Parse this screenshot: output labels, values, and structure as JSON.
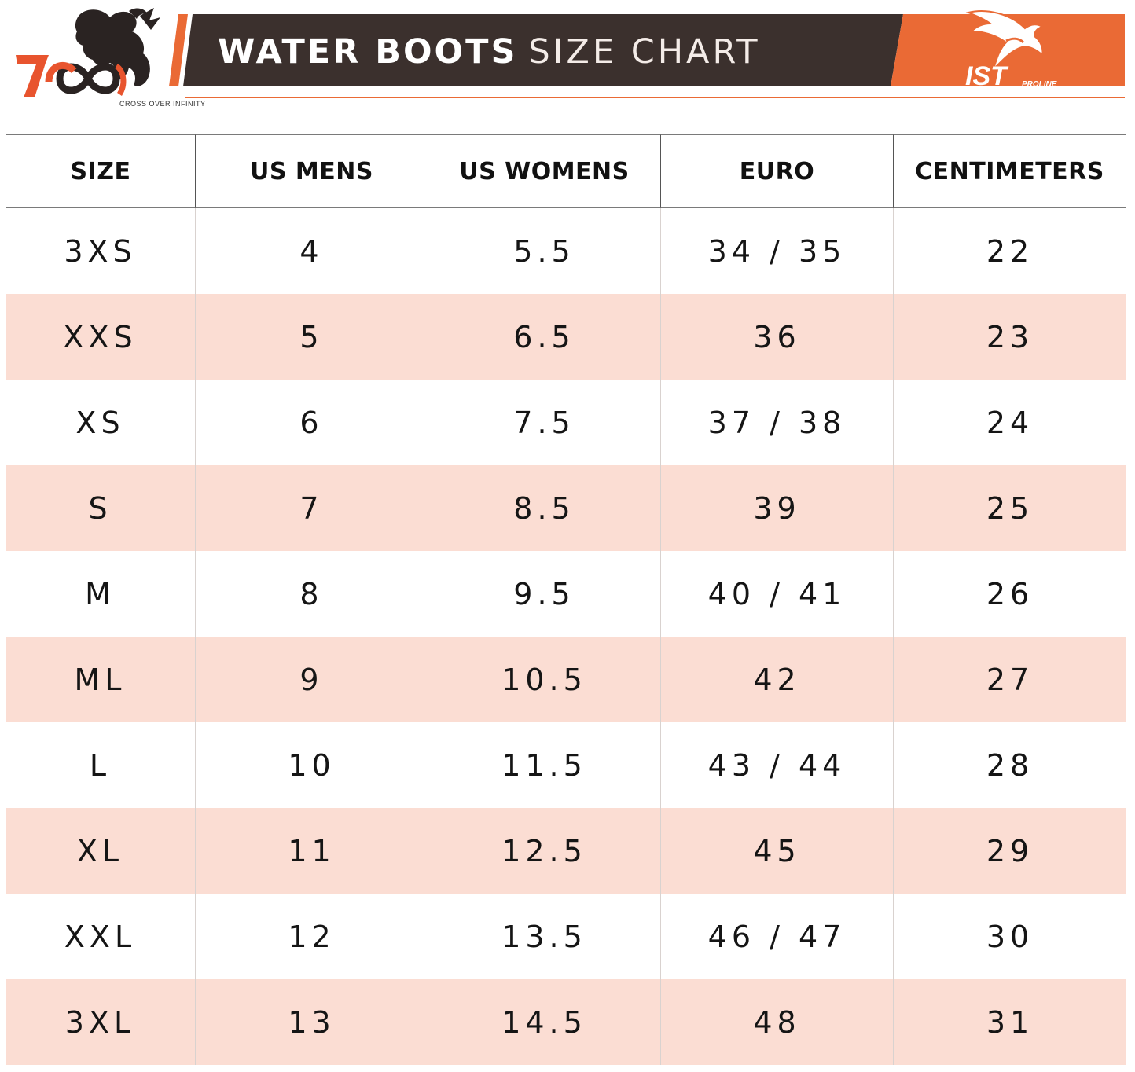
{
  "header": {
    "title_strong": "WATER BOOTS",
    "title_light": "SIZE CHART",
    "left_logo": {
      "mark": "700",
      "tagline": "CROSS OVER INFINITY"
    },
    "right_logo": {
      "mark": "IST",
      "sub": "PROLINE"
    }
  },
  "colors": {
    "accent": "#ea6a35",
    "banner": "#3b302d",
    "alt_row": "#fbddd3"
  },
  "table": {
    "columns": [
      "SIZE",
      "US MENS",
      "US WOMENS",
      "EURO",
      "CENTIMETERS"
    ],
    "rows": [
      [
        "3XS",
        "4",
        "5.5",
        "34 / 35",
        "22"
      ],
      [
        "XXS",
        "5",
        "6.5",
        "36",
        "23"
      ],
      [
        "XS",
        "6",
        "7.5",
        "37 / 38",
        "24"
      ],
      [
        "S",
        "7",
        "8.5",
        "39",
        "25"
      ],
      [
        "M",
        "8",
        "9.5",
        "40 / 41",
        "26"
      ],
      [
        "ML",
        "9",
        "10.5",
        "42",
        "27"
      ],
      [
        "L",
        "10",
        "11.5",
        "43 / 44",
        "28"
      ],
      [
        "XL",
        "11",
        "12.5",
        "45",
        "29"
      ],
      [
        "XXL",
        "12",
        "13.5",
        "46 / 47",
        "30"
      ],
      [
        "3XL",
        "13",
        "14.5",
        "48",
        "31"
      ]
    ]
  }
}
